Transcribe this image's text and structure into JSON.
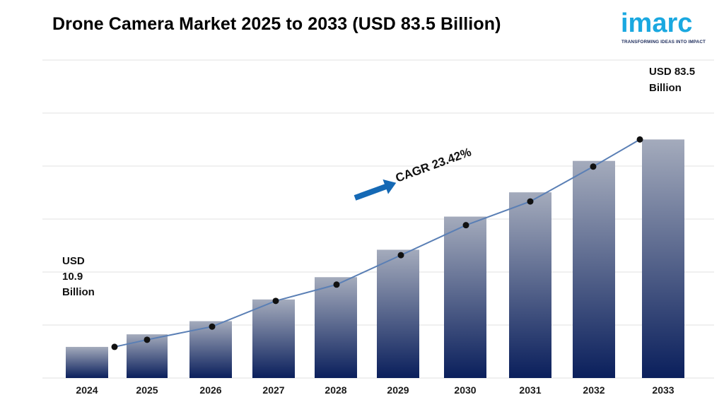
{
  "header": {
    "title": "Drone Camera Market 2025 to 2033 (USD 83.5 Billion)"
  },
  "logo": {
    "word": "imarc",
    "tagline": "TRANSFORMING IDEAS INTO IMPACT",
    "color": "#1aa8e0"
  },
  "chart_data": {
    "type": "bar",
    "title": "Drone Camera Market 2025 to 2033 (USD 83.5 Billion)",
    "categories": [
      "2024",
      "2025",
      "2026",
      "2027",
      "2028",
      "2029",
      "2030",
      "2031",
      "2032",
      "2033"
    ],
    "values": [
      10.9,
      15.3,
      19.9,
      27.5,
      35.3,
      44.9,
      56.5,
      65.0,
      76.0,
      83.5
    ],
    "line_values": [
      10.9,
      13.4,
      18.0,
      27.0,
      32.7,
      43.0,
      53.5,
      61.8,
      74.0,
      83.5
    ],
    "ylim": [
      0,
      115
    ],
    "grid": true,
    "bar_gradient": [
      "#a4abbc",
      "#0a1f5c"
    ],
    "line_color": "#5a7fb5",
    "start_label": [
      "USD",
      "10.9",
      "Billion"
    ],
    "end_label": [
      "USD 83.5",
      "Billion"
    ],
    "cagr_label": "CAGR 23.42%",
    "arrow_color": "#1569b5"
  }
}
